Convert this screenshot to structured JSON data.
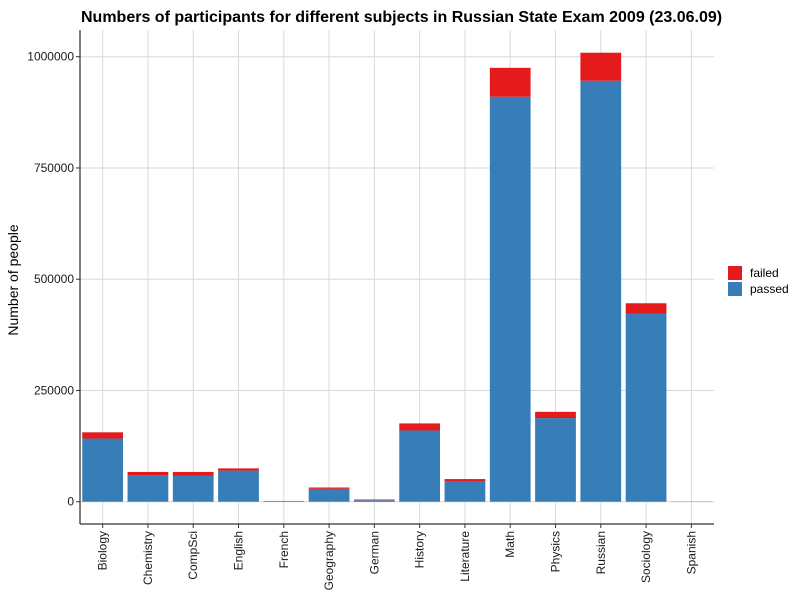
{
  "chart_data": {
    "type": "bar",
    "stacked": true,
    "title": "Numbers of participants for different subjects in Russian State Exam 2009 (23.06.09)",
    "xlabel": "",
    "ylabel": "Number of people",
    "categories": [
      "Biology",
      "Chemistry",
      "CompSci",
      "English",
      "French",
      "Geography",
      "German",
      "History",
      "Literature",
      "Math",
      "Physics",
      "Russian",
      "Sociology",
      "Spanish"
    ],
    "series": [
      {
        "name": "passed",
        "color": "#377EB8",
        "values": [
          142000,
          60000,
          58000,
          70000,
          1000,
          29000,
          3500,
          160000,
          45000,
          910000,
          188000,
          946000,
          423000,
          500
        ]
      },
      {
        "name": "failed",
        "color": "#E41A1C",
        "values": [
          14000,
          7000,
          9000,
          5000,
          800,
          3000,
          1500,
          16000,
          6000,
          65000,
          14000,
          63000,
          23000,
          100
        ]
      }
    ],
    "ylim": [
      -50000,
      1060000
    ],
    "yticks": [
      0,
      250000,
      500000,
      750000,
      1000000
    ],
    "ytick_labels": [
      "0",
      "250000",
      "500000",
      "750000",
      "1000000"
    ],
    "grid": true,
    "legend": {
      "position": "right",
      "entries": [
        "failed",
        "passed"
      ]
    }
  }
}
